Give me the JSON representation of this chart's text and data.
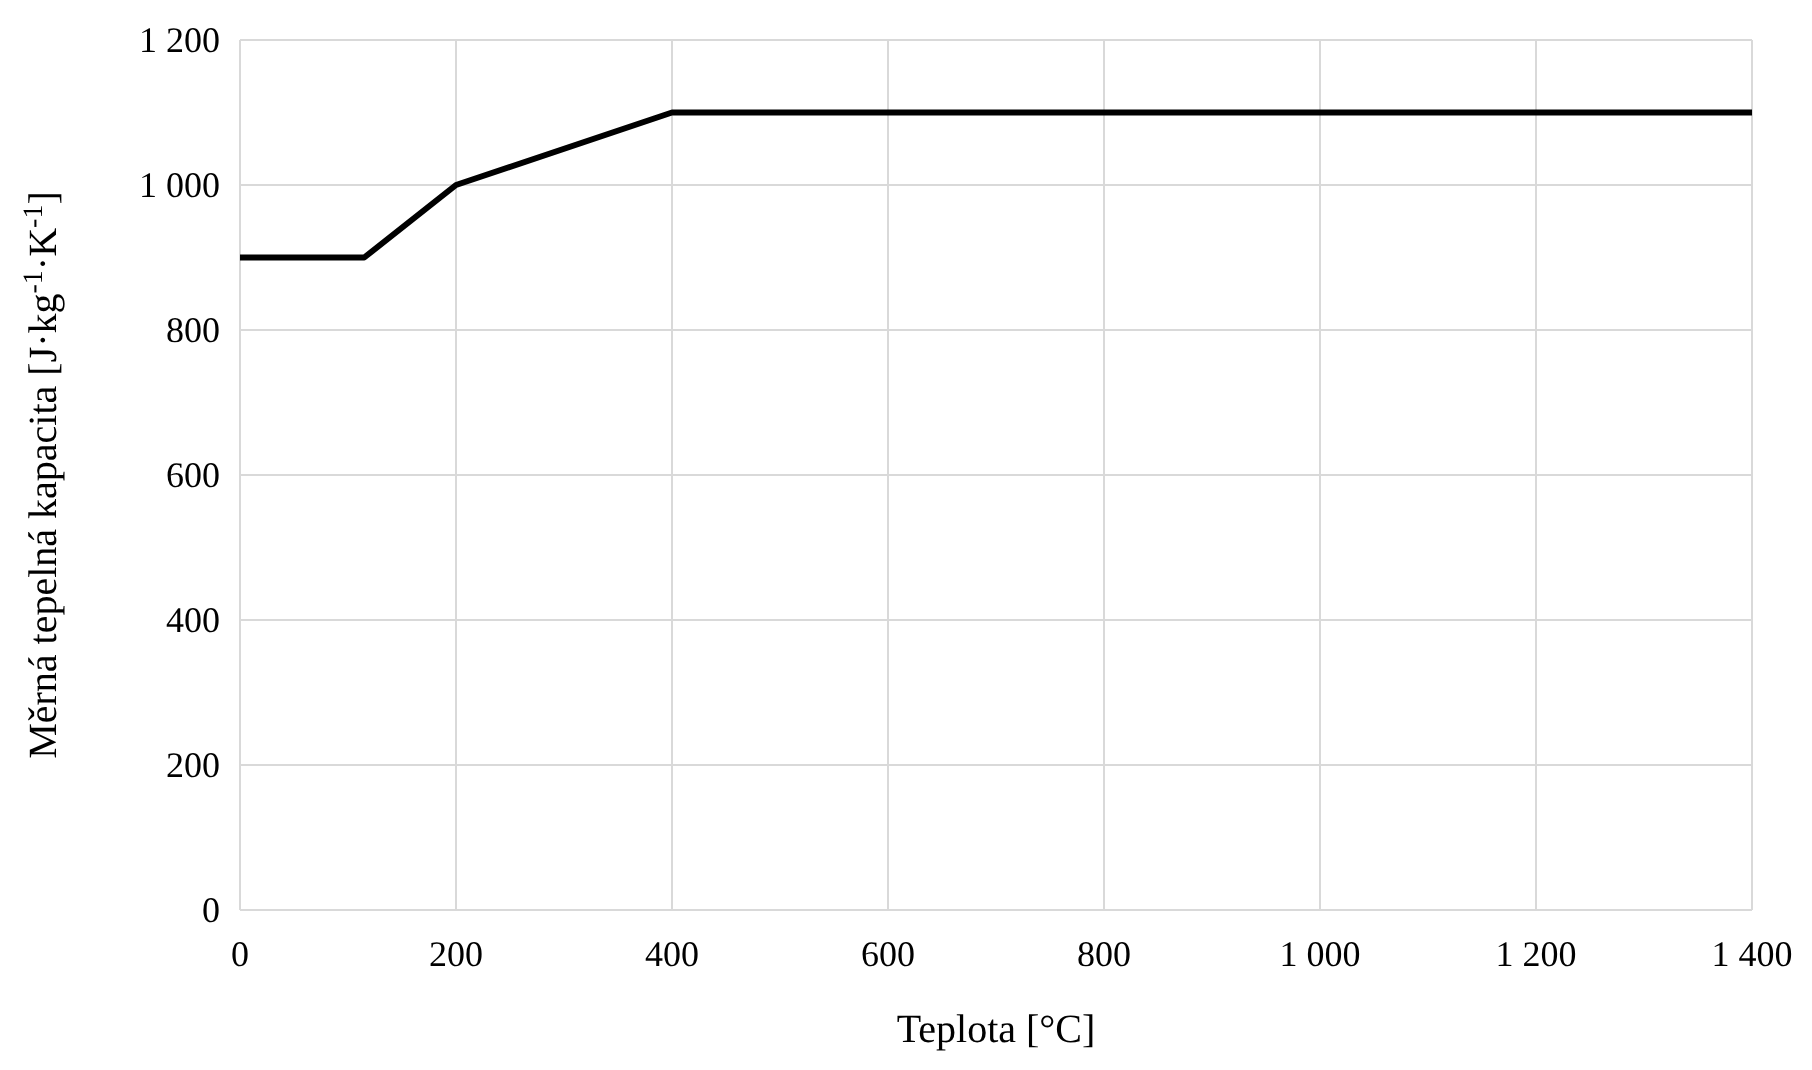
{
  "chart_data": {
    "type": "line",
    "xlabel": "Teplota [°C]",
    "ylabel": "Měrná tepelná kapacita [J·kg$^{-1}$·K$^{-1}$]",
    "x": [
      0,
      115,
      200,
      400,
      1400
    ],
    "series": [
      {
        "color": "#000000",
        "values": [
          900,
          900,
          1000,
          1100,
          1100
        ]
      }
    ],
    "xlim": [
      0,
      1400
    ],
    "xticks": [
      0,
      200,
      400,
      600,
      800,
      {
        "value": 1000,
        "label": "1 000"
      },
      {
        "value": 1200,
        "label": "1 200"
      },
      {
        "value": 1400,
        "label": "1 400"
      }
    ],
    "ylim": [
      0,
      1200
    ],
    "yticks": [
      0,
      200,
      400,
      600,
      800,
      {
        "value": 1000,
        "label": "1 000"
      },
      {
        "value": 1200,
        "label": "1 200"
      }
    ],
    "grid": true,
    "marker": "none",
    "line_style": "solid"
  }
}
